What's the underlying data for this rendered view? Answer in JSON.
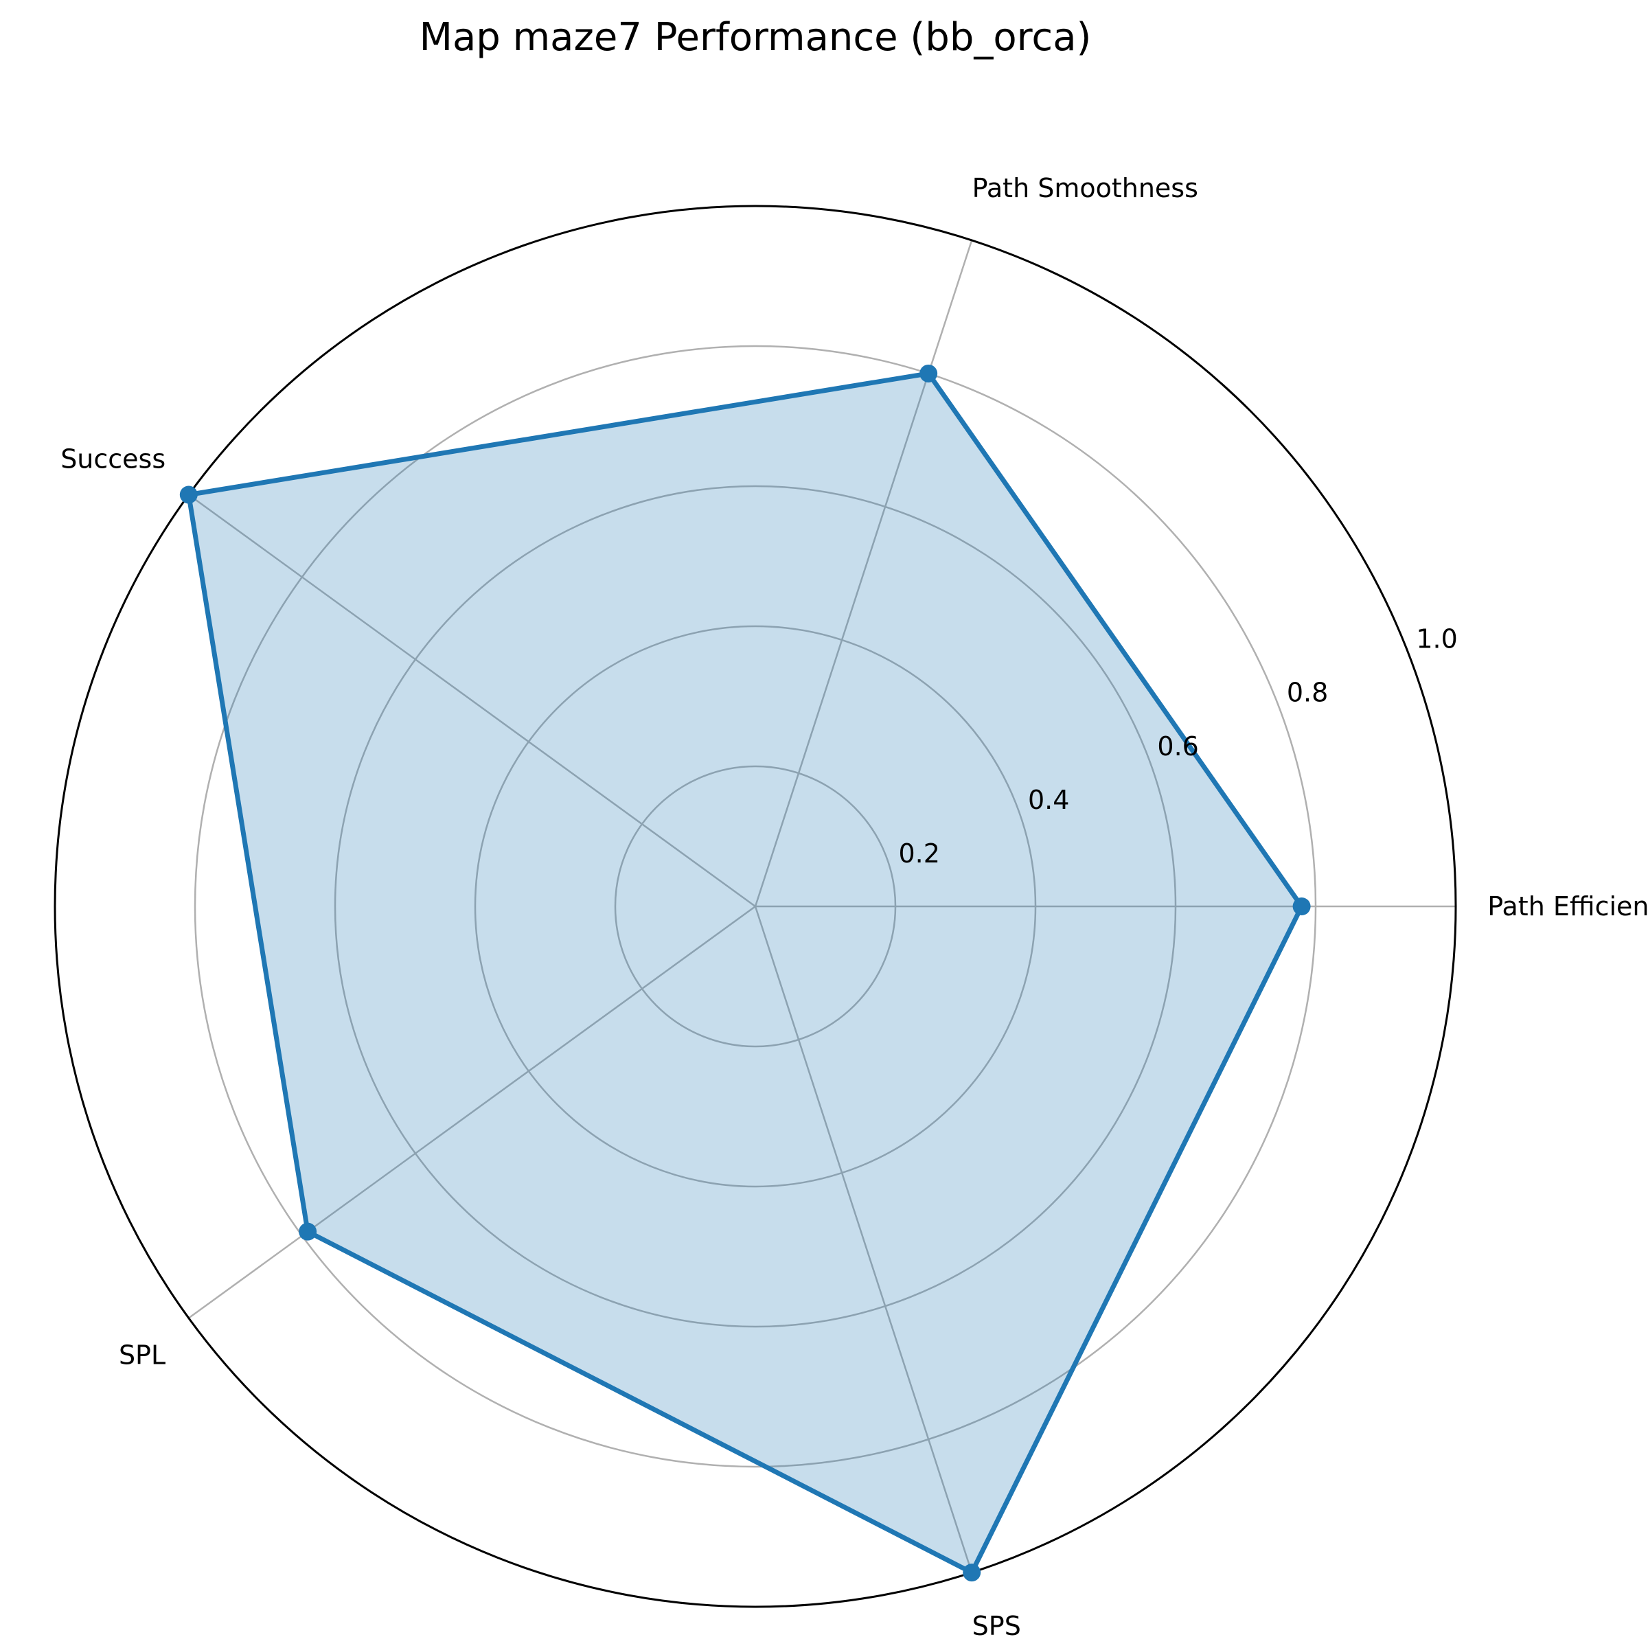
{
  "chart_data": {
    "type": "radar",
    "title": "Map maze7 Performance (bb_orca)",
    "categories": [
      "Path Efficiency",
      "Path Smoothness",
      "Success",
      "SPL",
      "SPS"
    ],
    "series": [
      {
        "values": [
          0.78,
          0.8,
          1.0,
          0.79,
          1.0
        ]
      }
    ],
    "rlim": [
      0,
      1.0
    ],
    "r_ticks": [
      0.2,
      0.4,
      0.6,
      0.8,
      1.0
    ],
    "r_tick_labels": [
      "0.2",
      "0.4",
      "0.6",
      "0.8",
      "1.0"
    ],
    "grid": true,
    "legend": "none",
    "colors": {
      "line": "#1f77b4",
      "fill": "#1f77b4",
      "grid": "#b0b0b0",
      "outer_frame": "#000000"
    }
  }
}
